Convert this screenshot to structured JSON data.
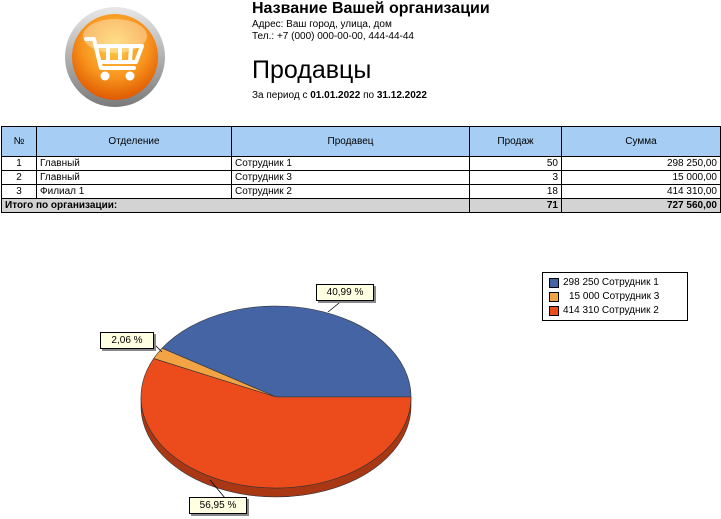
{
  "header": {
    "org_name": "Название Вашей организации",
    "address": "Адрес: Ваш город, улица, дом",
    "phone": "Тел.: +7 (000) 000-00-00, 444-44-44",
    "title": "Продавцы",
    "period_prefix": "За период с",
    "period_from": "01.01.2022",
    "period_mid": "по",
    "period_to": "31.12.2022"
  },
  "logo": {
    "icon": "shopping-cart-icon",
    "color": "#f7931e"
  },
  "table": {
    "columns": [
      "№",
      "Отделение",
      "Продавец",
      "Продаж",
      "Сумма"
    ],
    "rows": [
      [
        "1",
        "Главный",
        "Сотрудник 1",
        "50",
        "298 250,00"
      ],
      [
        "2",
        "Главный",
        "Сотрудник 3",
        "3",
        "15 000,00"
      ],
      [
        "3",
        "Филиал 1",
        "Сотрудник 2",
        "18",
        "414 310,00"
      ]
    ],
    "total": {
      "label": "Итого по организации:",
      "count": "71",
      "sum": "727 560,00"
    },
    "header_color": "#a6cef5",
    "total_color": "#d3d3d3"
  },
  "chart_data": {
    "type": "pie",
    "slices": [
      {
        "label": "298 250 Сотрудник 1",
        "value": 298250,
        "percent": "40,99 %",
        "color": "#4464a4"
      },
      {
        "label": "15 000 Сотрудник 3",
        "value": 15000,
        "percent": "2,06 %",
        "color": "#f2a445"
      },
      {
        "label": "414 310 Сотрудник 2",
        "value": 414310,
        "percent": "56,95 %",
        "color": "#ec4c1c"
      }
    ],
    "legend": "top-right"
  }
}
